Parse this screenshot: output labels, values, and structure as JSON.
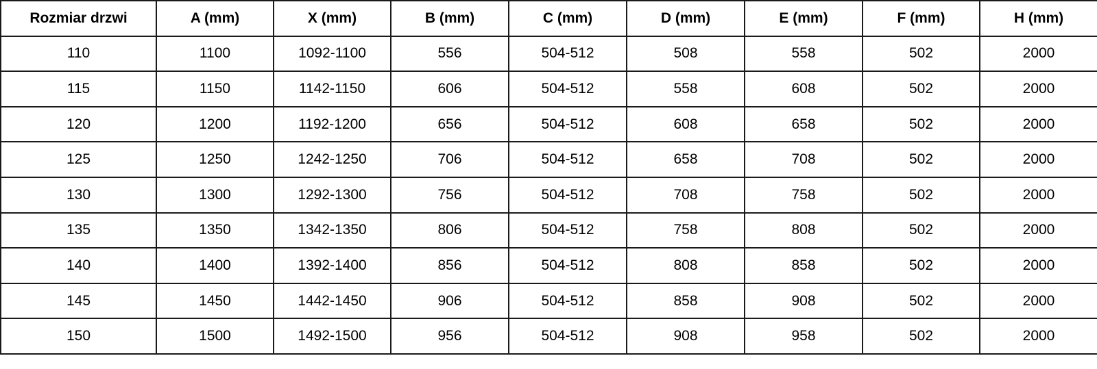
{
  "headers": [
    "Rozmiar drzwi",
    "A (mm)",
    "X (mm)",
    "B (mm)",
    "C (mm)",
    "D (mm)",
    "E (mm)",
    "F (mm)",
    "H (mm)"
  ],
  "rows": [
    [
      "110",
      "1100",
      "1092-1100",
      "556",
      "504-512",
      "508",
      "558",
      "502",
      "2000"
    ],
    [
      "115",
      "1150",
      "1142-1150",
      "606",
      "504-512",
      "558",
      "608",
      "502",
      "2000"
    ],
    [
      "120",
      "1200",
      "1192-1200",
      "656",
      "504-512",
      "608",
      "658",
      "502",
      "2000"
    ],
    [
      "125",
      "1250",
      "1242-1250",
      "706",
      "504-512",
      "658",
      "708",
      "502",
      "2000"
    ],
    [
      "130",
      "1300",
      "1292-1300",
      "756",
      "504-512",
      "708",
      "758",
      "502",
      "2000"
    ],
    [
      "135",
      "1350",
      "1342-1350",
      "806",
      "504-512",
      "758",
      "808",
      "502",
      "2000"
    ],
    [
      "140",
      "1400",
      "1392-1400",
      "856",
      "504-512",
      "808",
      "858",
      "502",
      "2000"
    ],
    [
      "145",
      "1450",
      "1442-1450",
      "906",
      "504-512",
      "858",
      "908",
      "502",
      "2000"
    ],
    [
      "150",
      "1500",
      "1492-1500",
      "956",
      "504-512",
      "908",
      "958",
      "502",
      "2000"
    ]
  ]
}
